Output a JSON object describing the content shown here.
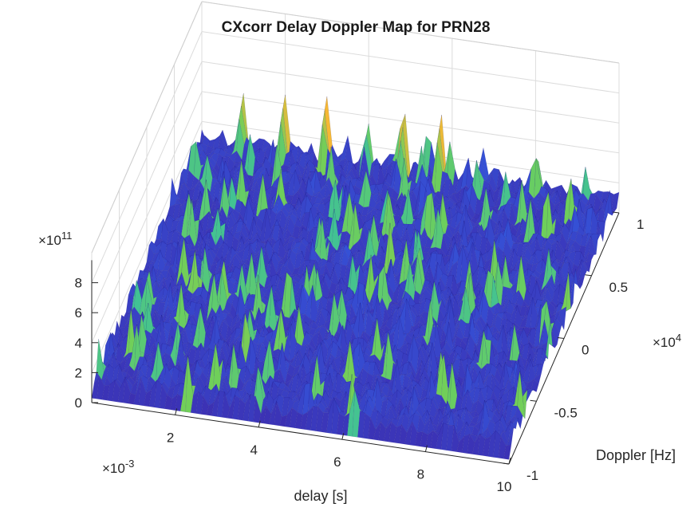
{
  "chart_data": {
    "type": "surface",
    "title": "CXcorr Delay Doppler Map for PRN28",
    "xlabel": "delay [s]",
    "ylabel": "Doppler [Hz]",
    "zlabel": "",
    "x_exponent": "×10^{-3}",
    "y_exponent": "×10^{4}",
    "z_exponent": "×10^{11}",
    "x_ticks": [
      "2",
      "4",
      "6",
      "8",
      "10"
    ],
    "x_tick_values": [
      2,
      4,
      6,
      8,
      10
    ],
    "y_ticks": [
      "-1",
      "-0.5",
      "0",
      "0.5",
      "1"
    ],
    "y_tick_values": [
      -1,
      -0.5,
      0,
      0.5,
      1
    ],
    "z_ticks": [
      "0",
      "2",
      "4",
      "6",
      "8"
    ],
    "z_tick_values": [
      0,
      2,
      4,
      6,
      8
    ],
    "xlim": [
      0,
      10
    ],
    "ylim": [
      -1,
      1
    ],
    "zlim": [
      0,
      10
    ],
    "noise_floor_approx": 1.5,
    "peaks": [
      {
        "delay": 1.0,
        "doppler": 1.0,
        "value": 4.3
      },
      {
        "delay": 2.0,
        "doppler": 1.0,
        "value": 4.6
      },
      {
        "delay": 3.0,
        "doppler": 1.0,
        "value": 4.9
      },
      {
        "delay": 4.0,
        "doppler": 1.0,
        "value": 3.5
      },
      {
        "delay": 4.9,
        "doppler": 1.0,
        "value": 4.5
      },
      {
        "delay": 5.8,
        "doppler": 1.0,
        "value": 4.8
      },
      {
        "delay": 6.8,
        "doppler": 1.0,
        "value": 3.0
      }
    ],
    "grid": true,
    "colormap": "parula",
    "colors": {
      "low": "#3e26a8",
      "mid_low": "#2f6ef5",
      "mid": "#18b6c8",
      "mid_high": "#6fcf5a",
      "high": "#f6b833"
    }
  }
}
